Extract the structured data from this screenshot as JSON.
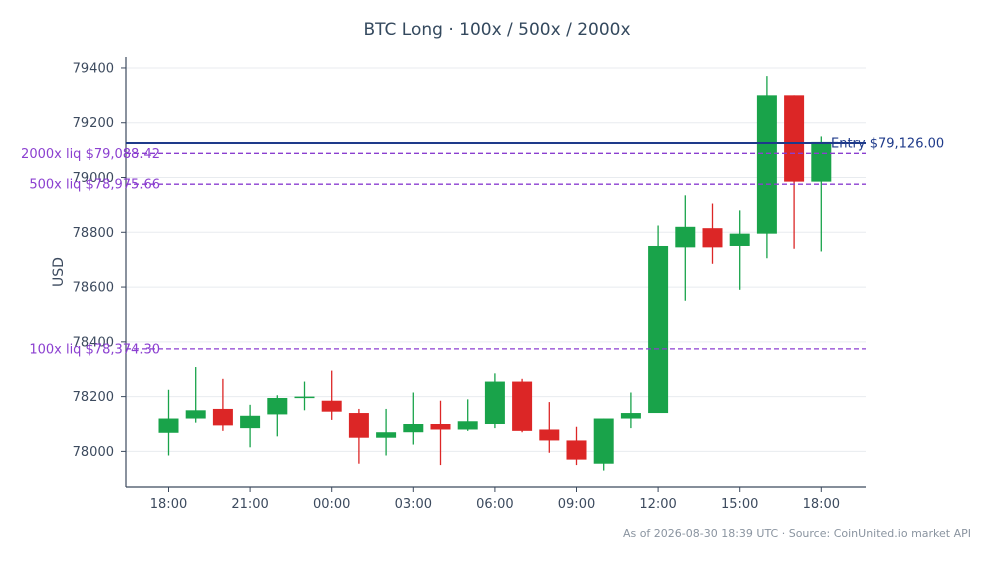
{
  "title": "BTC Long · 100x / 500x / 2000x",
  "footer": "As of 2026-08-30 18:39 UTC · Source: CoinUnited.io market API",
  "chart_data": {
    "type": "candlestick",
    "ylabel": "USD",
    "ylim": [
      77870,
      79440
    ],
    "y_ticks": [
      78000,
      78200,
      78400,
      78600,
      78800,
      79000,
      79200,
      79400
    ],
    "x_tick_labels": [
      {
        "index": 0,
        "label": "18:00"
      },
      {
        "index": 3,
        "label": "21:00"
      },
      {
        "index": 6,
        "label": "00:00"
      },
      {
        "index": 9,
        "label": "03:00"
      },
      {
        "index": 12,
        "label": "06:00"
      },
      {
        "index": 15,
        "label": "09:00"
      },
      {
        "index": 18,
        "label": "12:00"
      },
      {
        "index": 21,
        "label": "15:00"
      },
      {
        "index": 24,
        "label": "18:00"
      }
    ],
    "grid": true,
    "candles": [
      {
        "o": 78068,
        "h": 78225,
        "l": 77985,
        "c": 78120
      },
      {
        "o": 78120,
        "h": 78308,
        "l": 78105,
        "c": 78150
      },
      {
        "o": 78155,
        "h": 78265,
        "l": 78075,
        "c": 78095
      },
      {
        "o": 78085,
        "h": 78170,
        "l": 78015,
        "c": 78130
      },
      {
        "o": 78135,
        "h": 78205,
        "l": 78055,
        "c": 78195
      },
      {
        "o": 78195,
        "h": 78255,
        "l": 78150,
        "c": 78200
      },
      {
        "o": 78185,
        "h": 78295,
        "l": 78115,
        "c": 78145
      },
      {
        "o": 78140,
        "h": 78155,
        "l": 77955,
        "c": 78050
      },
      {
        "o": 78050,
        "h": 78155,
        "l": 77985,
        "c": 78070
      },
      {
        "o": 78070,
        "h": 78215,
        "l": 78025,
        "c": 78100
      },
      {
        "o": 78100,
        "h": 78185,
        "l": 77950,
        "c": 78080
      },
      {
        "o": 78080,
        "h": 78190,
        "l": 78075,
        "c": 78110
      },
      {
        "o": 78100,
        "h": 78285,
        "l": 78085,
        "c": 78255
      },
      {
        "o": 78255,
        "h": 78265,
        "l": 78070,
        "c": 78075
      },
      {
        "o": 78080,
        "h": 78180,
        "l": 77995,
        "c": 78040
      },
      {
        "o": 78040,
        "h": 78090,
        "l": 77950,
        "c": 77970
      },
      {
        "o": 77955,
        "h": 78120,
        "l": 77930,
        "c": 78120
      },
      {
        "o": 78120,
        "h": 78215,
        "l": 78085,
        "c": 78140
      },
      {
        "o": 78140,
        "h": 78825,
        "l": 78140,
        "c": 78750
      },
      {
        "o": 78745,
        "h": 78935,
        "l": 78550,
        "c": 78820
      },
      {
        "o": 78815,
        "h": 78905,
        "l": 78685,
        "c": 78745
      },
      {
        "o": 78750,
        "h": 78880,
        "l": 78590,
        "c": 78795
      },
      {
        "o": 78795,
        "h": 79370,
        "l": 78705,
        "c": 79300
      },
      {
        "o": 79300,
        "h": 79300,
        "l": 78740,
        "c": 78985
      },
      {
        "o": 78985,
        "h": 79150,
        "l": 78730,
        "c": 79130
      }
    ],
    "colors": {
      "up": "#19a34a",
      "down": "#dc2626",
      "entry": "#1e3a8a",
      "liq": "#8b3fd0"
    },
    "entry_line": {
      "label": "Entry $79,126.00",
      "value": 79126.0
    },
    "liq_lines": [
      {
        "label": "2000x liq $79,088.42",
        "value": 79088.42
      },
      {
        "label": "500x liq $78,975.66",
        "value": 78975.66
      },
      {
        "label": "100x liq $78,374.30",
        "value": 78374.3
      }
    ]
  }
}
